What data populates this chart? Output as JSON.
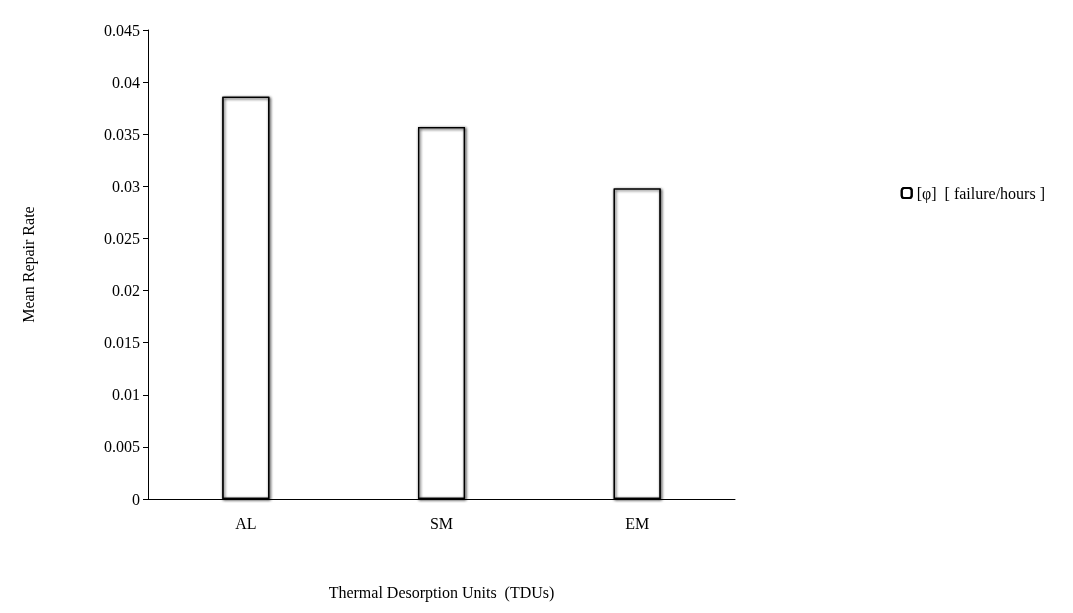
{
  "chart_data": {
    "type": "bar",
    "xlabel": "Thermal Desorption Units  (TDUs)",
    "ylabel": "Mean Repair Rate",
    "categories": [
      "AL",
      "SM",
      "EM"
    ],
    "series": [
      {
        "name": "[φ]  [ failure/hours ]",
        "color": "#ffffff",
        "values": [
          0.0386,
          0.0357,
          0.0298
        ]
      }
    ],
    "ylim": [
      0,
      0.045
    ],
    "yticks": [
      0,
      0.005,
      0.01,
      0.015,
      0.02,
      0.025,
      0.03,
      0.035,
      0.04,
      0.045
    ],
    "grid": false,
    "legend": "right"
  }
}
